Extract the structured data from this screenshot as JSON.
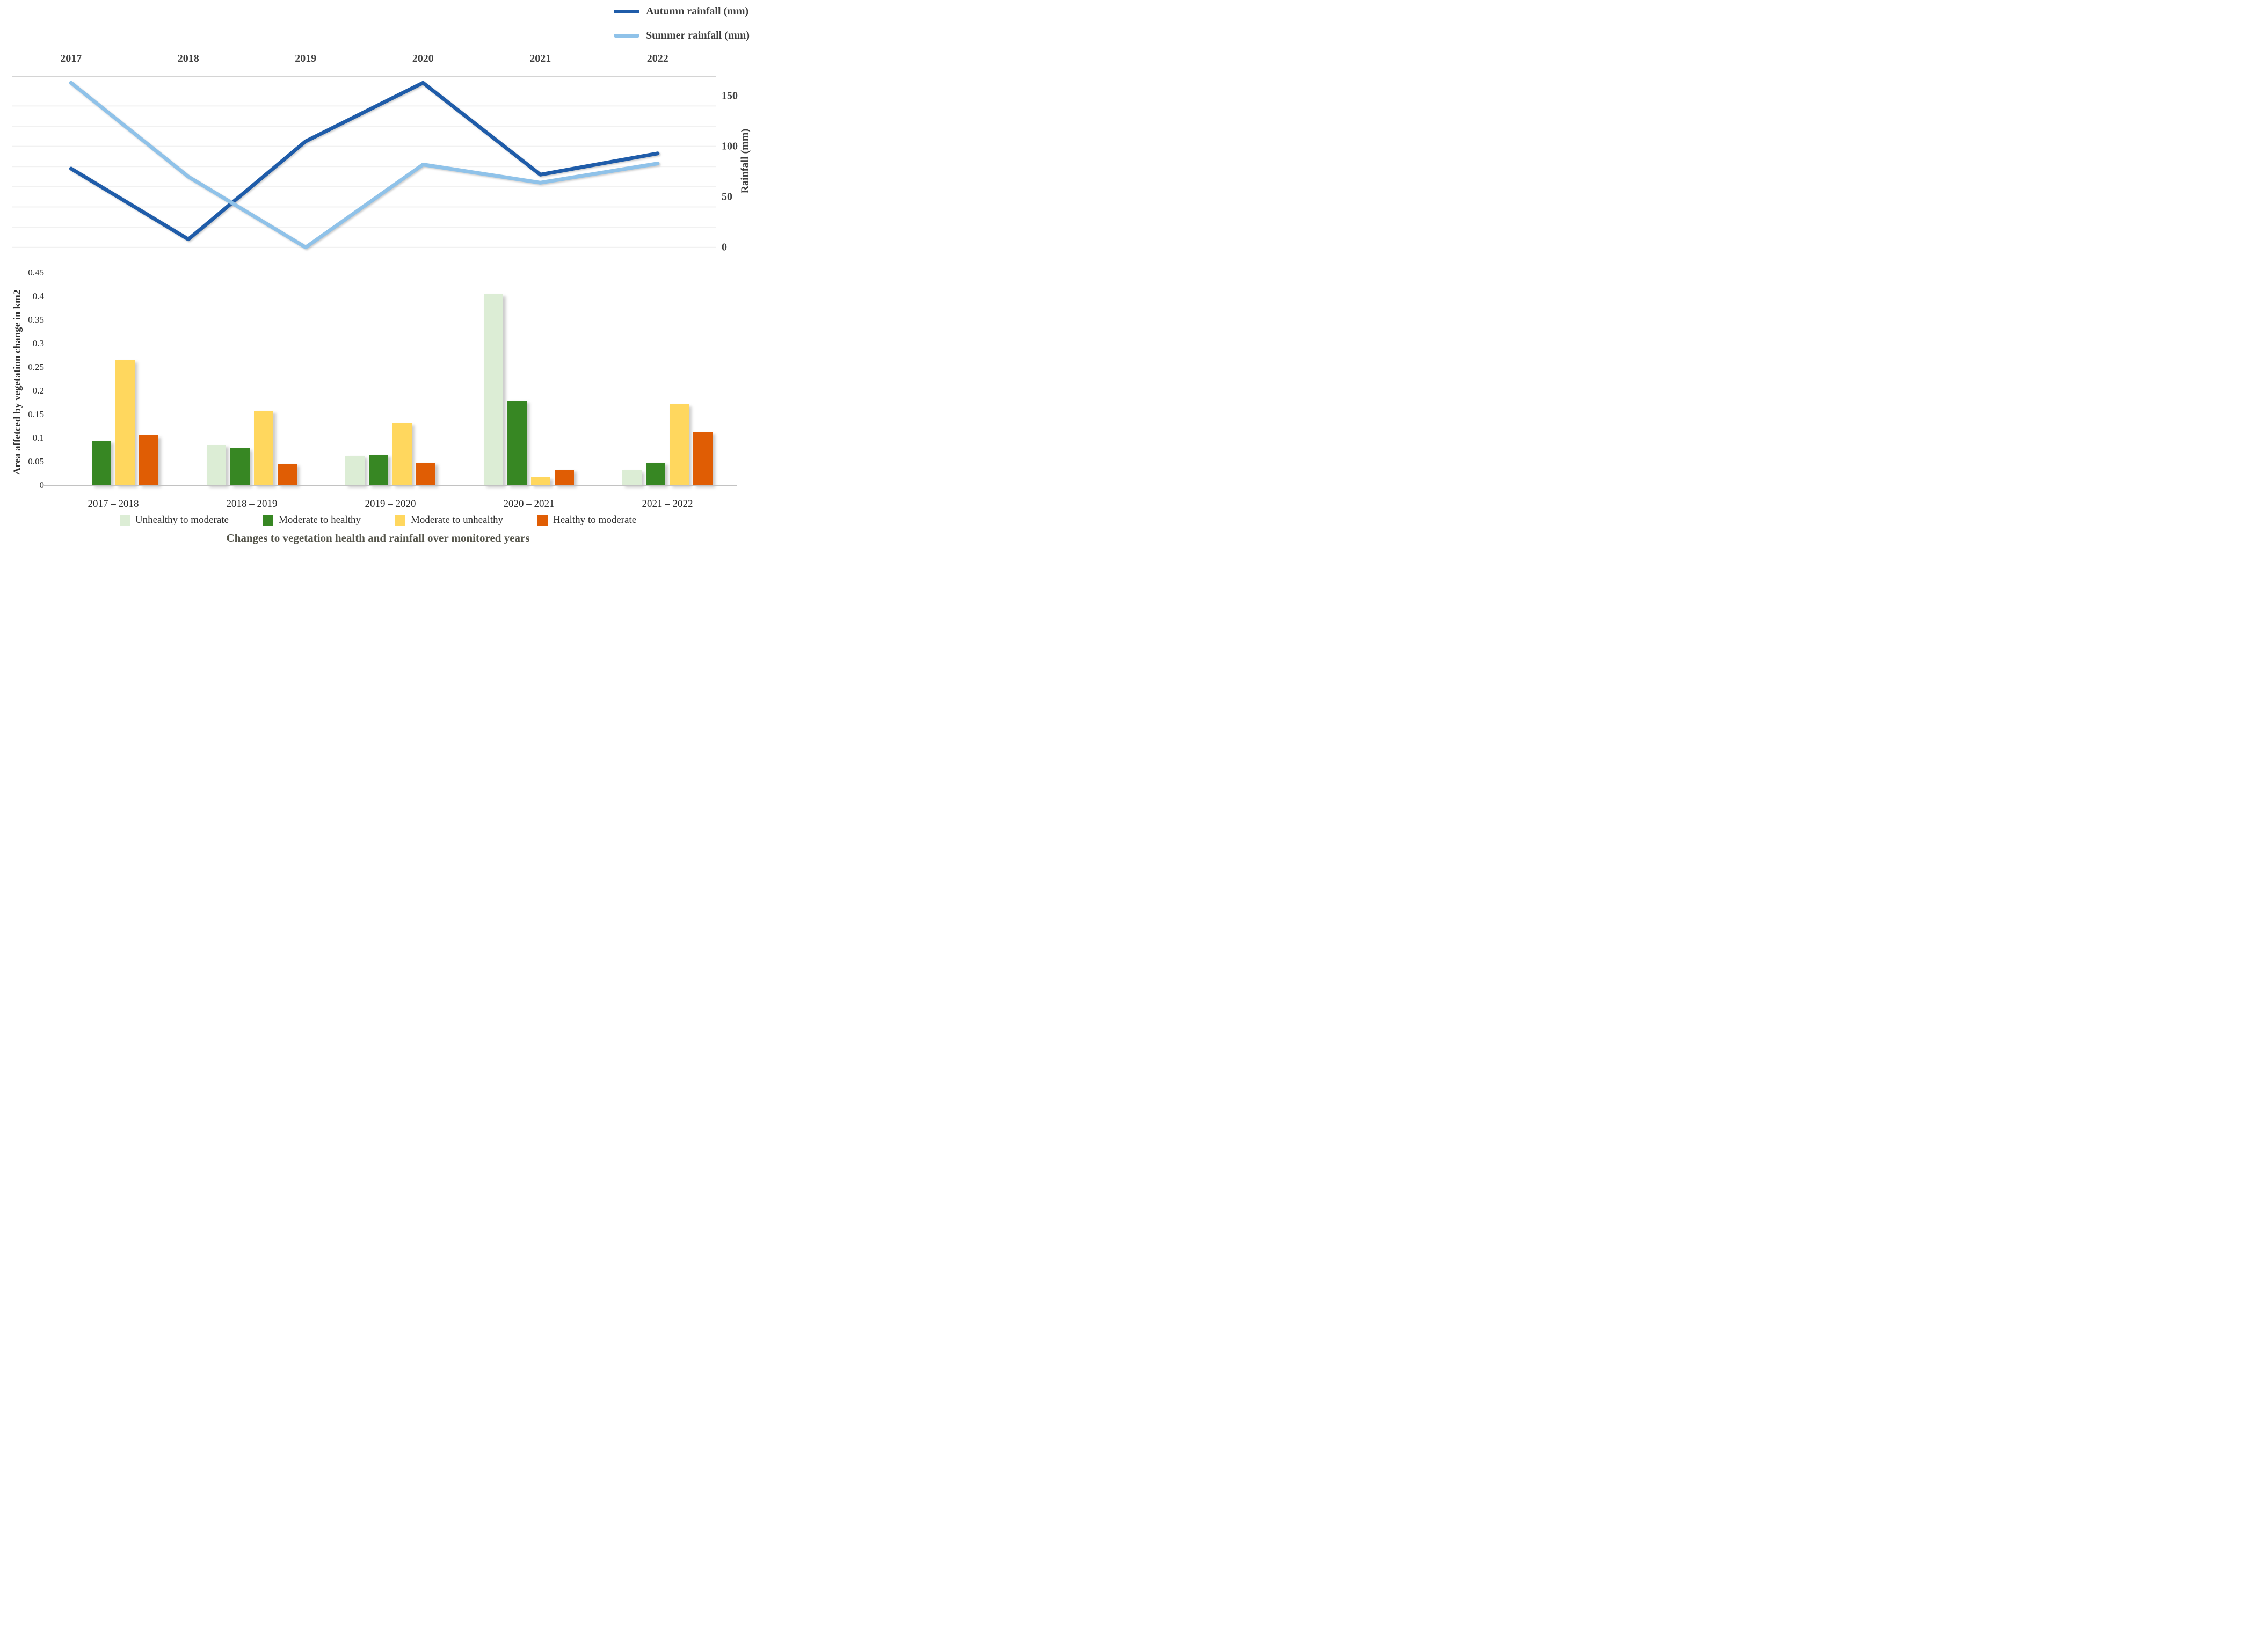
{
  "figure": {
    "title": "Changes to vegetation health and rainfall over monitored years"
  },
  "chart_data": [
    {
      "type": "line",
      "x": [
        "2017",
        "2018",
        "2019",
        "2020",
        "2021",
        "2022"
      ],
      "series": [
        {
          "name": "Autumn rainfall (mm)",
          "color": "#1F5CA9",
          "values": [
            78,
            8,
            105,
            163,
            72,
            93
          ]
        },
        {
          "name": "Summer rainfall (mm)",
          "color": "#8FC2E9",
          "values": [
            163,
            70,
            0,
            82,
            64,
            83
          ]
        }
      ],
      "ylabel": "Rainfall (mm)",
      "yticks": [
        {
          "label": "150",
          "value": 150
        },
        {
          "label": "100",
          "value": 100
        },
        {
          "label": "50",
          "value": 50
        },
        {
          "label": "0",
          "value": 0
        }
      ],
      "ylim": [
        0,
        170
      ],
      "grid": true,
      "grid_step": 20,
      "legend_position": "top-right"
    },
    {
      "type": "bar",
      "categories": [
        "2017 – 2018",
        "2018 – 2019",
        "2019 – 2020",
        "2020 – 2021",
        "2021 – 2022"
      ],
      "series": [
        {
          "name": "Unhealthy to moderate",
          "color": "#DCEDD5",
          "values": [
            0,
            0.085,
            0.062,
            0.405,
            0.032
          ]
        },
        {
          "name": "Moderate to healthy",
          "color": "#378723",
          "values": [
            0.094,
            0.078,
            0.065,
            0.18,
            0.048
          ]
        },
        {
          "name": "Moderate to unhealthy",
          "color": "#FFD75E",
          "values": [
            0.265,
            0.158,
            0.132,
            0.017,
            0.172
          ]
        },
        {
          "name": "Healthy to moderate",
          "color": "#E05D04",
          "values": [
            0.106,
            0.045,
            0.048,
            0.033,
            0.113
          ]
        }
      ],
      "ylabel": "Area affetced by vegetation change in km2",
      "yticks": [
        {
          "label": "0.45",
          "value": 0.45
        },
        {
          "label": "0.4",
          "value": 0.4
        },
        {
          "label": "0.35",
          "value": 0.35
        },
        {
          "label": "0.3",
          "value": 0.3
        },
        {
          "label": "0.25",
          "value": 0.25
        },
        {
          "label": "0.2",
          "value": 0.2
        },
        {
          "label": "0.15",
          "value": 0.15
        },
        {
          "label": "0.1",
          "value": 0.1
        },
        {
          "label": "0.05",
          "value": 0.05
        },
        {
          "label": "0",
          "value": 0
        }
      ],
      "ylim": [
        0,
        0.45
      ],
      "grid": false,
      "legend_position": "bottom"
    }
  ]
}
